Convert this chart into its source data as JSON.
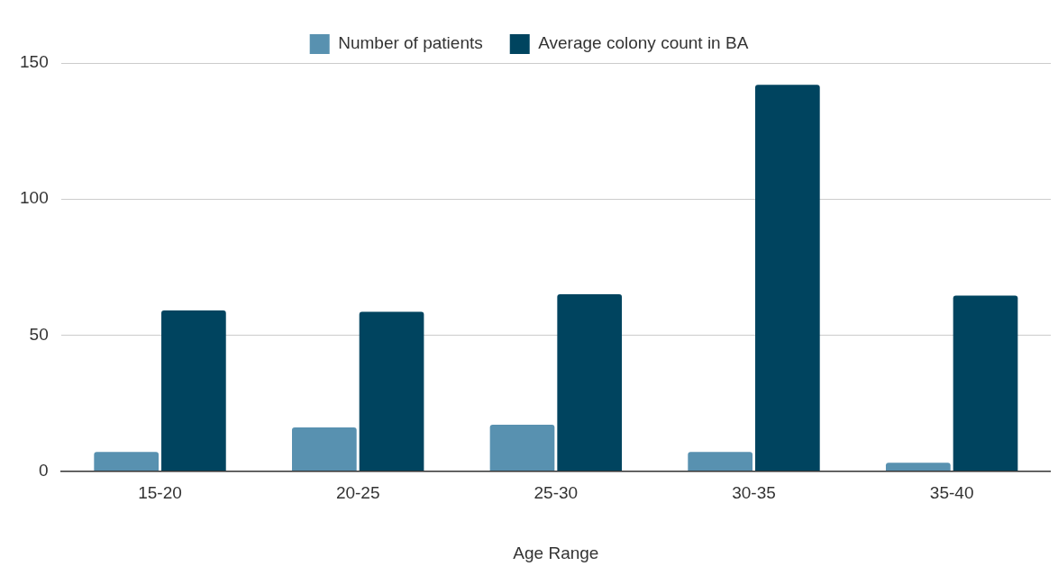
{
  "chart_data": {
    "type": "bar",
    "xlabel": "Age Range",
    "categories": [
      "15-20",
      "20-25",
      "25-30",
      "30-35",
      "35-40"
    ],
    "series": [
      {
        "name": "Number of patients",
        "color": "#5891b0",
        "values": [
          7,
          16,
          17,
          7,
          3
        ]
      },
      {
        "name": "Average colony count in BA",
        "color": "#00445f",
        "values": [
          59,
          58.5,
          65,
          142,
          64.5
        ]
      }
    ],
    "ylim": [
      0,
      150
    ],
    "yticks": [
      0,
      50,
      100,
      150
    ],
    "grid": "y",
    "legend": "top"
  }
}
